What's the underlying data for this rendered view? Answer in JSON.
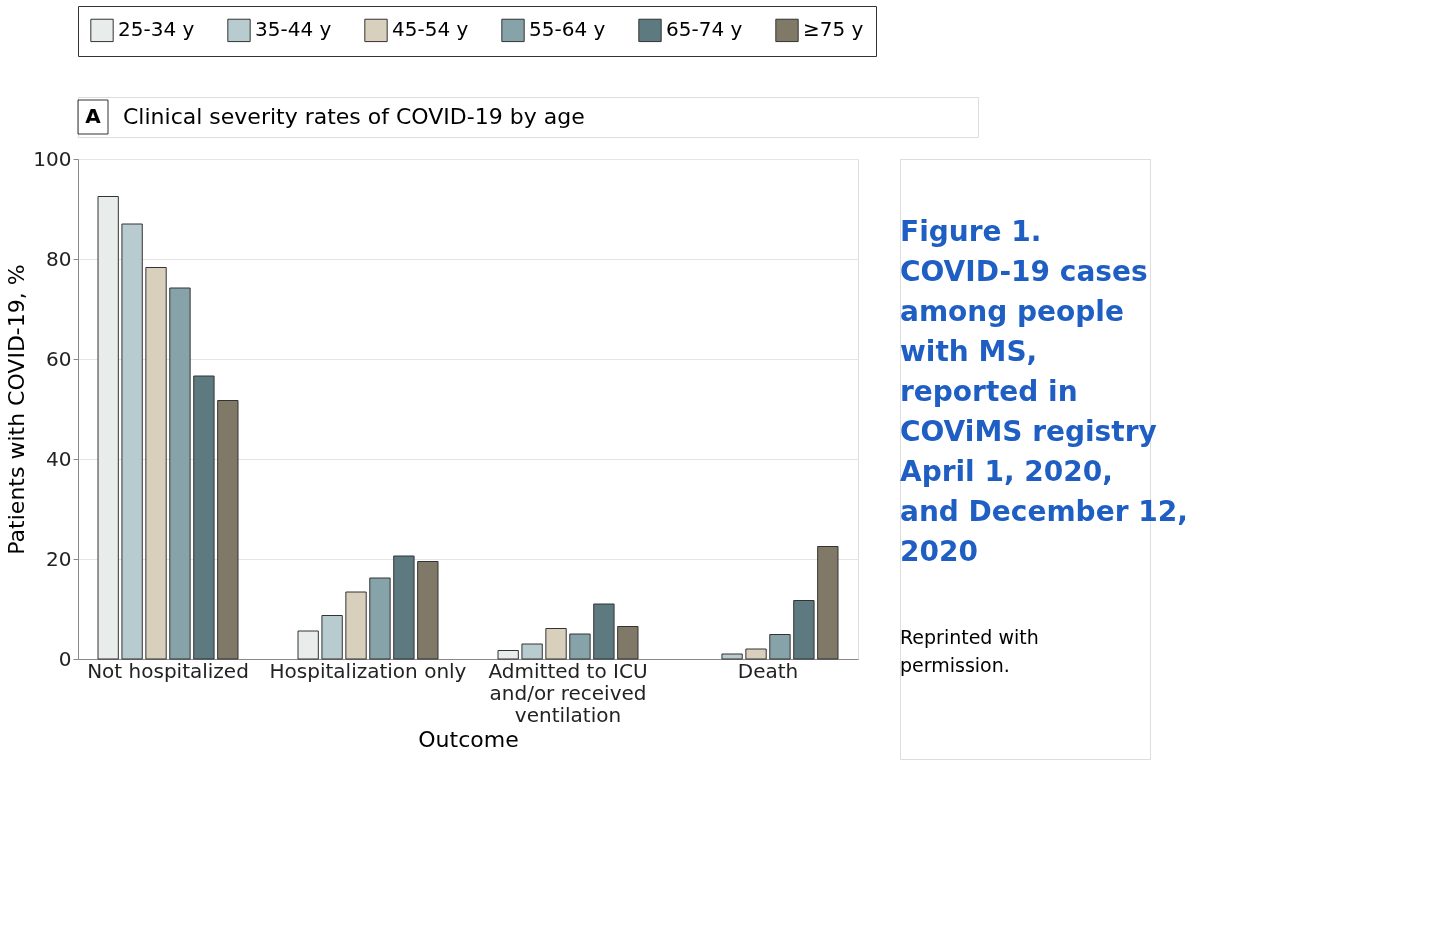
{
  "chart_data": {
    "type": "bar",
    "title": "Clinical severity rates of COVID-19 by age",
    "xlabel": "Outcome",
    "ylabel": "Patients with COVID-19, %",
    "categories": [
      "Not hospitalized",
      "Hospitalization only",
      "Admitted to ICU and/or received ventilation",
      "Death"
    ],
    "series": [
      {
        "name": "25-34 y",
        "color": "#e8eceb",
        "values": [
          92.5,
          5.6,
          1.7,
          0
        ]
      },
      {
        "name": "35-44 y",
        "color": "#b8cbcf",
        "values": [
          87.0,
          8.7,
          3.0,
          1.0
        ]
      },
      {
        "name": "45-54 y",
        "color": "#d8cfbd",
        "values": [
          78.3,
          13.4,
          6.1,
          2.0
        ]
      },
      {
        "name": "55-64 y",
        "color": "#86a3aa",
        "values": [
          74.2,
          16.2,
          5.0,
          4.9
        ]
      },
      {
        "name": "65-74 y",
        "color": "#5d7a81",
        "values": [
          56.6,
          20.6,
          11.0,
          11.7
        ]
      },
      {
        "name": "≥75 y",
        "color": "#817967",
        "values": [
          51.7,
          19.5,
          6.5,
          22.5
        ]
      }
    ],
    "ylim": [
      0,
      100
    ],
    "yticks": [
      0,
      20,
      40,
      60,
      80,
      100
    ],
    "grid": "y",
    "legend": "top",
    "annotations": [
      "A",
      "Figure 1. COVID-19 cases among people with MS, reported in COViMS registry April 1, 2020, and December 12, 2020",
      "Reprinted with permission."
    ]
  }
}
